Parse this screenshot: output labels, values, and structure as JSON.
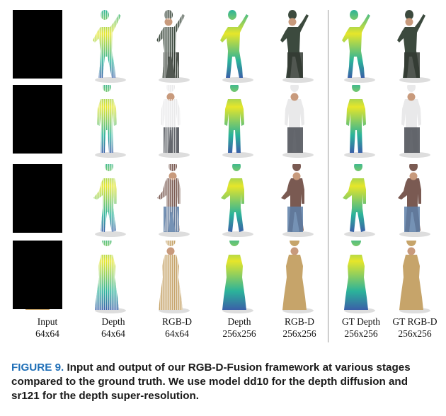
{
  "figure": {
    "columns": [
      {
        "name": "Input",
        "size": "64x64"
      },
      {
        "name": "Depth",
        "size": "64x64"
      },
      {
        "name": "RGB-D",
        "size": "64x64"
      },
      {
        "name": "Depth",
        "size": "256x256"
      },
      {
        "name": "RGB-D",
        "size": "256x256"
      },
      {
        "name": "GT Depth",
        "size": "256x256"
      },
      {
        "name": "GT RGB-D",
        "size": "256x256"
      }
    ],
    "rows": [
      {
        "subject": "person raising arm, dark jacket"
      },
      {
        "subject": "man in white shirt, dark trousers"
      },
      {
        "subject": "man in checked shirt, jeans"
      },
      {
        "subject": "woman in patterned dress"
      }
    ]
  },
  "caption": {
    "label": "FIGURE 9.",
    "text": "Input and output of our RGB-D-Fusion framework at various stages compared to the ground truth. We use model dd10 for the depth diffusion and sr121 for the depth super-resolution."
  },
  "colors": {
    "caption_label": "#1f6fb7",
    "depth_low": "#3a5fa8",
    "depth_mid": "#2bb39a",
    "depth_high": "#e6e62a"
  }
}
